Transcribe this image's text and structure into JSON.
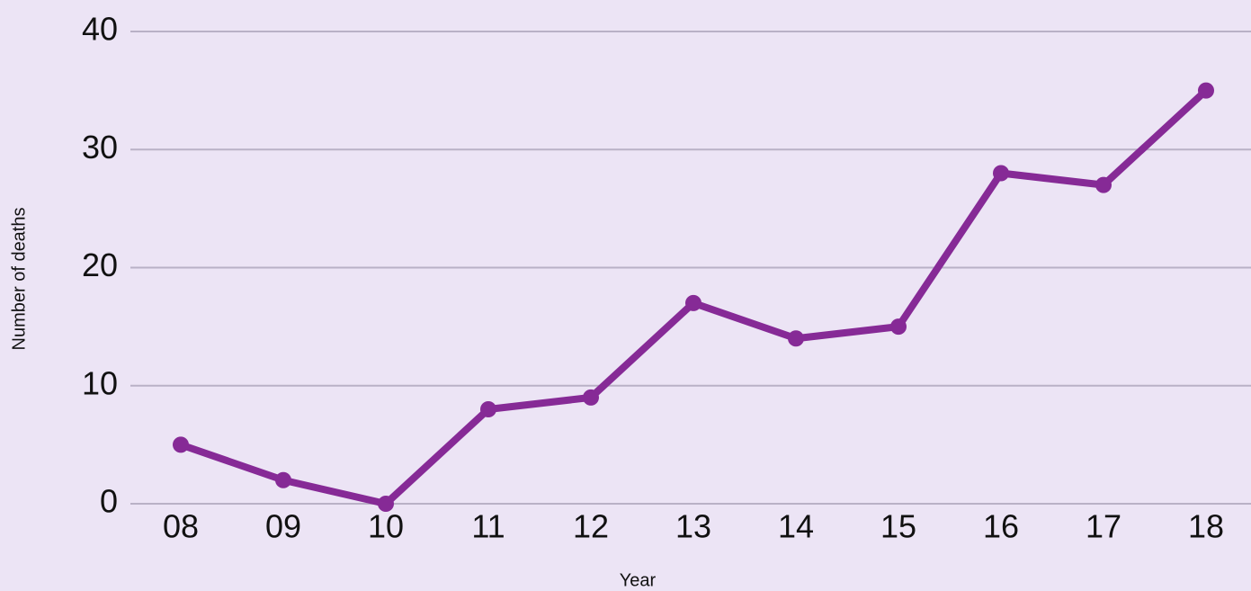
{
  "chart_data": {
    "type": "line",
    "x_label": "Year",
    "y_label": "Number of deaths",
    "categories": [
      "08",
      "09",
      "10",
      "11",
      "12",
      "13",
      "14",
      "15",
      "16",
      "17",
      "18"
    ],
    "values": [
      5,
      2,
      0,
      8,
      9,
      17,
      14,
      15,
      28,
      27,
      35
    ],
    "color": "#862a96",
    "ylim": [
      0,
      40
    ],
    "yticks": [
      0,
      10,
      20,
      30,
      40
    ],
    "grid": true
  }
}
